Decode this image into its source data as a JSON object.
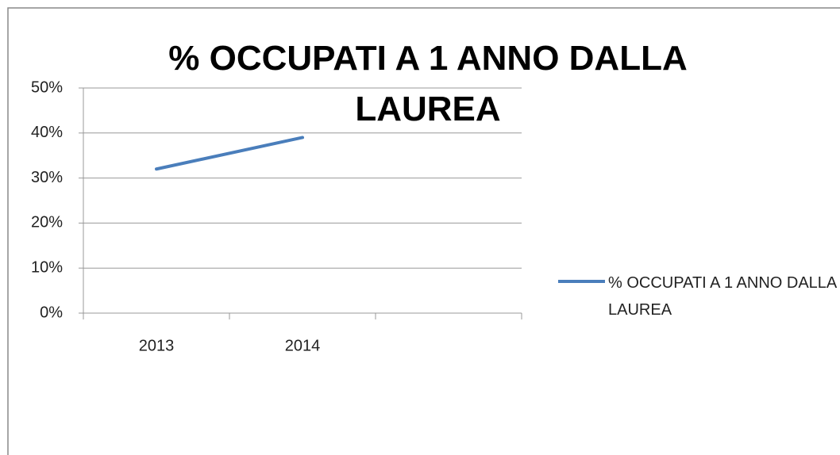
{
  "chart_data": {
    "type": "line",
    "title": "% OCCUPATI A 1 ANNO DALLA LAUREA",
    "categories": [
      "2013",
      "2014",
      null
    ],
    "series": [
      {
        "name": "% OCCUPATI A 1 ANNO DALLA LAUREA",
        "color": "#4a7ebb",
        "values": [
          32,
          39,
          null
        ]
      }
    ],
    "ylim": [
      0,
      50
    ],
    "yticks": [
      {
        "value": 0,
        "label": "0%"
      },
      {
        "value": 10,
        "label": "10%"
      },
      {
        "value": 20,
        "label": "20%"
      },
      {
        "value": 30,
        "label": "30%"
      },
      {
        "value": 40,
        "label": "40%"
      },
      {
        "value": 50,
        "label": "50%"
      }
    ],
    "grid": true,
    "legend": "right"
  }
}
